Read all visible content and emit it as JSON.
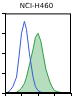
{
  "chart_data": {
    "type": "line",
    "title": "NCI-H460",
    "x": [
      1,
      1.5,
      2,
      3,
      5,
      7,
      10,
      15,
      20,
      30,
      50,
      70,
      100,
      150,
      200,
      300,
      500,
      700,
      1000,
      2000,
      5000,
      10000
    ],
    "series": [
      {
        "color": "#3b5bdb",
        "values": [
          0,
          1,
          3,
          8,
          20,
          45,
          75,
          90,
          80,
          50,
          20,
          8,
          3,
          1,
          0,
          0,
          0,
          0,
          0,
          0,
          0,
          0
        ]
      },
      {
        "color": "#2f9e44",
        "values": [
          0,
          0,
          0,
          0,
          1,
          3,
          6,
          12,
          20,
          35,
          55,
          70,
          75,
          65,
          50,
          30,
          15,
          8,
          3,
          1,
          0,
          0
        ]
      }
    ],
    "log": "x",
    "xlim": [
      1,
      10000
    ],
    "xticks": [
      1,
      10,
      100,
      1000,
      10000
    ],
    "ylim": [
      0,
      100
    ],
    "yticks": [
      0,
      25,
      50,
      75,
      100
    ],
    "grid": false,
    "tick_labels": false
  }
}
